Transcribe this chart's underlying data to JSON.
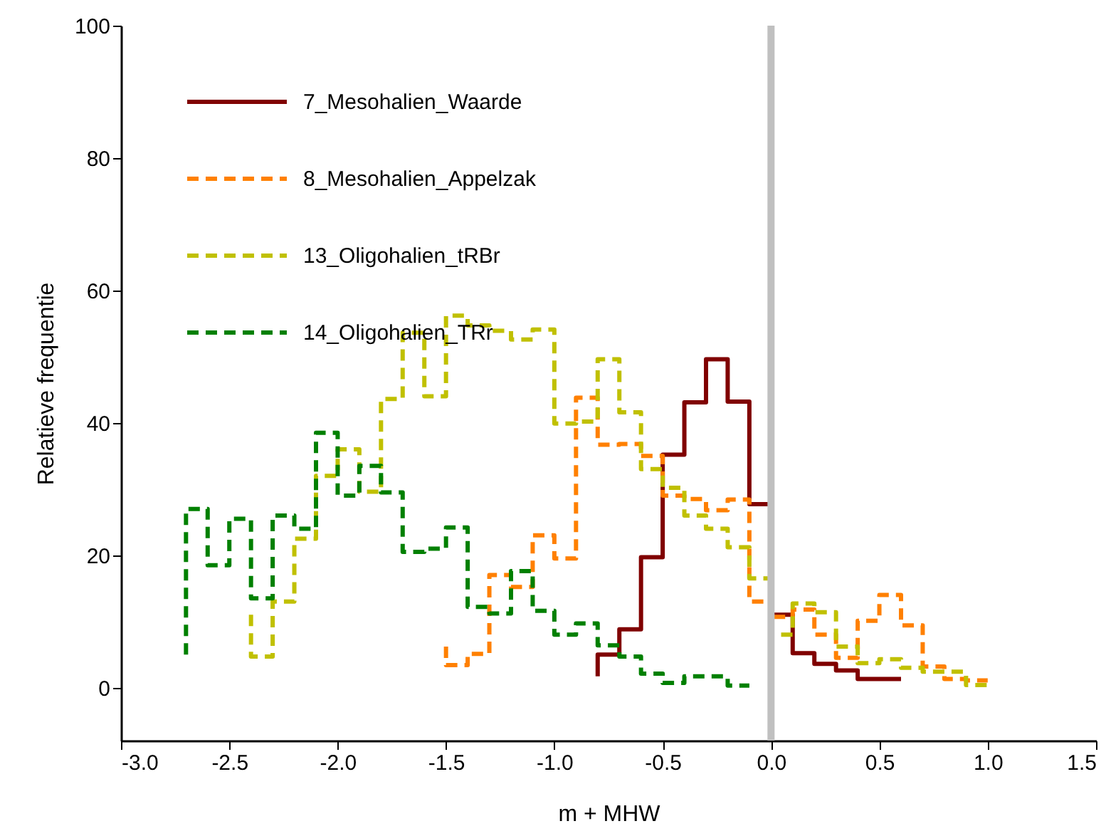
{
  "chart_data": {
    "type": "step",
    "xlabel": "m + MHW",
    "ylabel": "Relatieve frequentie",
    "xlim": [
      -3.0,
      1.5
    ],
    "ylim": [
      -8,
      100
    ],
    "xticks": [
      {
        "value": -3.0,
        "label": "-3.0"
      },
      {
        "value": -2.5,
        "label": "-2.5"
      },
      {
        "value": -2.0,
        "label": "-2.0"
      },
      {
        "value": -1.5,
        "label": "-1.5"
      },
      {
        "value": -1.0,
        "label": "-1.0"
      },
      {
        "value": -0.5,
        "label": "-0.5"
      },
      {
        "value": 0,
        "label": "0.0"
      },
      {
        "value": 0.5,
        "label": "0.5"
      },
      {
        "value": 1.0,
        "label": "1.0"
      },
      {
        "value": 1.5,
        "label": "1.5"
      }
    ],
    "yticks": [
      0,
      20,
      40,
      60,
      80,
      100
    ],
    "grid": false,
    "legend": "top left",
    "ref_lines": [
      {
        "axis": "x",
        "value": 0,
        "label": null,
        "color": "#c0c0c0"
      }
    ],
    "series": [
      {
        "name": "7_Mesohalien_Waarde",
        "color": "#800000",
        "line_style": "solid",
        "x": [
          -0.8,
          -0.8,
          -0.7,
          -0.6,
          -0.5,
          -0.4,
          -0.3,
          -0.2,
          -0.1,
          0.0,
          0.1,
          0.2,
          0.3,
          0.4,
          0.5,
          0.6
        ],
        "values": [
          1.7,
          5,
          8.8,
          19.7,
          35.2,
          43.1,
          49.6,
          43.2,
          27.7,
          11,
          5.2,
          3.6,
          2.6,
          1.3,
          1.3,
          1.3
        ]
      },
      {
        "name": "8_Mesohalien_Appelzak",
        "color": "#ff8000",
        "line_style": "dashed",
        "x": [
          -1.5,
          -1.5,
          -1.4,
          -1.3,
          -1.2,
          -1.1,
          -1.0,
          -0.9,
          -0.8,
          -0.7,
          -0.6,
          -0.5,
          -0.4,
          -0.3,
          -0.2,
          -0.1,
          0.0,
          0.1,
          0.2,
          0.3,
          0.4,
          0.5,
          0.6,
          0.7,
          0.8,
          0.9,
          1.0
        ],
        "values": [
          6.2,
          3.4,
          5.1,
          17,
          15.2,
          23,
          19.5,
          43.8,
          36.7,
          36.8,
          35,
          29,
          28.5,
          26.8,
          28.4,
          13,
          10.7,
          11.8,
          8,
          4.5,
          10.1,
          14,
          9.4,
          3.2,
          1.3,
          1.1,
          1.1
        ]
      },
      {
        "name": "13_Oligohalien_tRBr",
        "color": "#c0c000",
        "line_style": "dashed",
        "x": [
          -2.4,
          -2.4,
          -2.3,
          -2.2,
          -2.1,
          -2.0,
          -1.9,
          -1.8,
          -1.7,
          -1.6,
          -1.5,
          -1.4,
          -1.3,
          -1.2,
          -1.1,
          -1.0,
          -0.9,
          -0.8,
          -0.7,
          -0.6,
          -0.5,
          -0.4,
          -0.3,
          -0.2,
          -0.1,
          0.0,
          0.1,
          0.2,
          0.3,
          0.4,
          0.5,
          0.6,
          0.7,
          0.8,
          0.9,
          1.0
        ],
        "values": [
          11,
          4.7,
          13,
          22.5,
          32,
          36,
          29.6,
          43.6,
          53.6,
          44,
          56.2,
          54.7,
          53.9,
          52.6,
          54.1,
          39.9,
          40.2,
          49.6,
          41.6,
          33,
          30.2,
          26,
          24,
          21.2,
          16.5,
          8,
          12.7,
          11.4,
          6.2,
          3.7,
          4.3,
          3,
          2.4,
          2.4,
          0.4,
          0.4
        ]
      },
      {
        "name": "14_Oligohalien_TRr",
        "color": "#008000",
        "line_style": "dashed",
        "x": [
          -2.7,
          -2.7,
          -2.6,
          -2.5,
          -2.4,
          -2.3,
          -2.2,
          -2.1,
          -2.0,
          -1.9,
          -1.8,
          -1.7,
          -1.6,
          -1.5,
          -1.4,
          -1.3,
          -1.2,
          -1.1,
          -1.0,
          -0.9,
          -0.8,
          -0.7,
          -0.6,
          -0.5,
          -0.4,
          -0.3,
          -0.2,
          -0.1
        ],
        "values": [
          5,
          27,
          18.5,
          25.5,
          13.5,
          26,
          24,
          38.5,
          29,
          33.5,
          29.5,
          20.5,
          21,
          24.2,
          12.2,
          11.2,
          17.6,
          11.6,
          8,
          9.7,
          6.4,
          4.7,
          2.1,
          0.7,
          1.7,
          1.7,
          0.3,
          0.3
        ]
      }
    ]
  }
}
